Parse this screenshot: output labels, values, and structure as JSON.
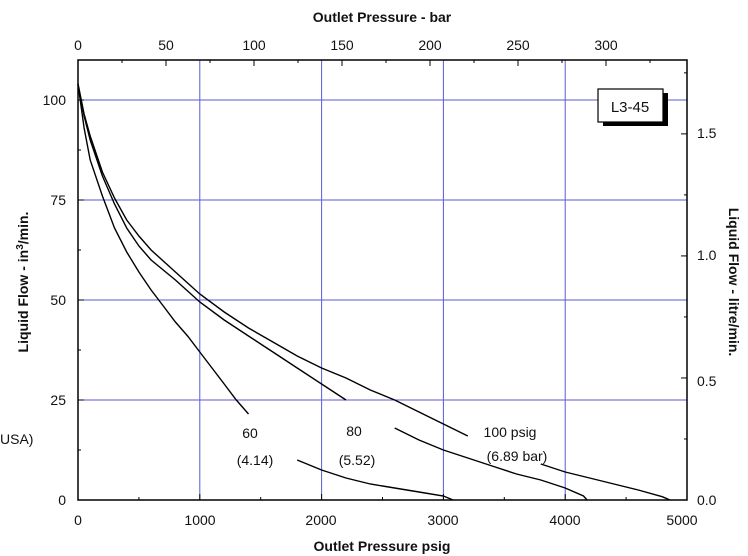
{
  "chart_data": {
    "type": "line",
    "colors": {
      "grid": "#5a5ad6",
      "curve": "#000000",
      "frame": "#000000"
    },
    "top_axis": {
      "title": "Outlet Pressure - bar",
      "ticks": [
        "0",
        "50",
        "100",
        "150",
        "200",
        "250",
        "300"
      ]
    },
    "bottom_axis": {
      "title": "Outlet Pressure psig",
      "ticks": [
        "0",
        "1000",
        "2000",
        "3000",
        "4000",
        "5000"
      ]
    },
    "left_axis": {
      "title_pre": "Liquid Flow - in",
      "title_sup": "3",
      "title_post": "/min.",
      "ticks": [
        "0",
        "25",
        "50",
        "75",
        "100"
      ]
    },
    "right_axis": {
      "title": "Liquid Flow - litre/min.",
      "ticks": [
        "0.0",
        "0.5",
        "1.0",
        "1.5"
      ]
    },
    "model_label": "L3-45",
    "left_fragment": "USA)",
    "xlim": [
      0,
      5000
    ],
    "ylim": [
      0,
      110
    ],
    "grid": true,
    "series": [
      {
        "annotation": [
          "60",
          "(4.14)"
        ],
        "points": [
          [
            0,
            104
          ],
          [
            50,
            93
          ],
          [
            100,
            85
          ],
          [
            200,
            76
          ],
          [
            300,
            68
          ],
          [
            400,
            62
          ],
          [
            500,
            57
          ],
          [
            600,
            52.5
          ],
          [
            700,
            48.5
          ],
          [
            800,
            44.5
          ],
          [
            900,
            41
          ],
          [
            1000,
            37
          ],
          [
            1100,
            33
          ],
          [
            1200,
            29
          ],
          [
            1300,
            25
          ],
          [
            1400,
            21.5
          ],
          [
            1600,
            14
          ],
          [
            1800,
            10
          ],
          [
            2000,
            7.5
          ],
          [
            2200,
            5.5
          ],
          [
            2400,
            4
          ],
          [
            2600,
            3
          ],
          [
            2800,
            2
          ],
          [
            3000,
            1
          ],
          [
            3080,
            0
          ]
        ]
      },
      {
        "annotation": [
          "80",
          "(5.52)"
        ],
        "points": [
          [
            0,
            104
          ],
          [
            50,
            96
          ],
          [
            100,
            90
          ],
          [
            200,
            81
          ],
          [
            300,
            74
          ],
          [
            400,
            68
          ],
          [
            500,
            63.5
          ],
          [
            600,
            60
          ],
          [
            800,
            55
          ],
          [
            1000,
            49.5
          ],
          [
            1200,
            45
          ],
          [
            1400,
            41
          ],
          [
            1600,
            37
          ],
          [
            1800,
            33
          ],
          [
            2000,
            29
          ],
          [
            2200,
            25
          ],
          [
            2400,
            22
          ],
          [
            2600,
            18
          ],
          [
            2800,
            15
          ],
          [
            3000,
            12.5
          ],
          [
            3200,
            10.5
          ],
          [
            3400,
            8.5
          ],
          [
            3600,
            6.5
          ],
          [
            3800,
            5
          ],
          [
            4000,
            3
          ],
          [
            4150,
            1
          ],
          [
            4180,
            0
          ]
        ]
      },
      {
        "annotation": [
          "100 psig",
          "(6.89 bar)"
        ],
        "points": [
          [
            0,
            104
          ],
          [
            50,
            96.5
          ],
          [
            100,
            91
          ],
          [
            200,
            82
          ],
          [
            300,
            75.5
          ],
          [
            400,
            70
          ],
          [
            500,
            66
          ],
          [
            600,
            62.5
          ],
          [
            800,
            57
          ],
          [
            1000,
            51.5
          ],
          [
            1200,
            47
          ],
          [
            1400,
            43
          ],
          [
            1600,
            39.5
          ],
          [
            1800,
            36
          ],
          [
            2000,
            33
          ],
          [
            2200,
            30.5
          ],
          [
            2400,
            27.5
          ],
          [
            2600,
            25
          ],
          [
            2800,
            22
          ],
          [
            3000,
            19
          ],
          [
            3200,
            16
          ],
          [
            3400,
            13
          ],
          [
            3600,
            11
          ],
          [
            3800,
            9
          ],
          [
            4000,
            7
          ],
          [
            4200,
            5.5
          ],
          [
            4400,
            4
          ],
          [
            4600,
            2.5
          ],
          [
            4800,
            0.8
          ],
          [
            4860,
            0
          ]
        ]
      }
    ]
  }
}
